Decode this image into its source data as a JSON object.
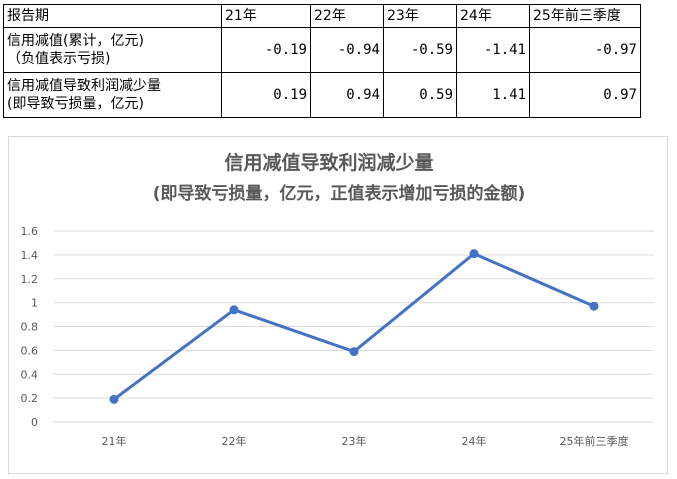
{
  "table": {
    "header": [
      "报告期",
      "21年",
      "22年",
      "23年",
      "24年",
      "25年前三季度"
    ],
    "rows": [
      {
        "label_line1": "信用减值(累计，亿元)",
        "label_line2": "（负值表示亏损)",
        "values": [
          "-0.19",
          "-0.94",
          "-0.59",
          "-1.41",
          "-0.97"
        ]
      },
      {
        "label_line1": "信用减值导致利润减少量",
        "label_line2": "(即导致亏损量，亿元)",
        "values": [
          "0.19",
          "0.94",
          "0.59",
          "1.41",
          "0.97"
        ]
      }
    ]
  },
  "chart_data": {
    "type": "line",
    "title": "信用减值导致利润减少量",
    "subtitle": "(即导致亏损量，亿元，正值表示增加亏损的金额)",
    "categories": [
      "21年",
      "22年",
      "23年",
      "24年",
      "25年前三季度"
    ],
    "series": [
      {
        "values": [
          0.19,
          0.94,
          0.59,
          1.41,
          0.97
        ],
        "color": "#4472c4"
      }
    ],
    "y_ticks": [
      "0",
      "0.2",
      "0.4",
      "0.6",
      "0.8",
      "1",
      "1.2",
      "1.4",
      "1.6"
    ],
    "ylim": [
      0,
      1.6
    ],
    "grid": true,
    "gridline_color": "#d9d9d9",
    "text_color": "#595959"
  }
}
